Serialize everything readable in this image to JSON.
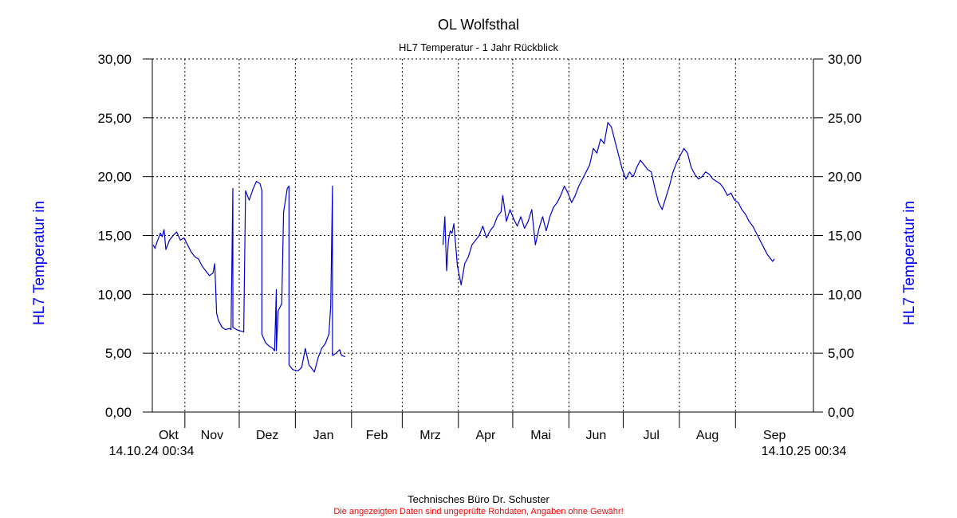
{
  "chart_data": {
    "type": "line",
    "title": "OL Wolfsthal",
    "subtitle": "HL7 Temperatur - 1 Jahr Rückblick",
    "ylabel_left": "HL7 Temperatur in",
    "ylabel_right": "HL7 Temperatur in",
    "ylim": [
      0,
      30
    ],
    "yticks": [
      "0,00",
      "5,00",
      "10,00",
      "15,00",
      "20,00",
      "25,00",
      "30,00"
    ],
    "x_start_label": "14.10.24 00:34",
    "x_end_label": "14.10.25 00:34",
    "months": [
      "Okt",
      "Nov",
      "Dez",
      "Jan",
      "Feb",
      "Mrz",
      "Apr",
      "Mai",
      "Jun",
      "Jul",
      "Aug",
      "Sep"
    ],
    "grid": true,
    "line_color": "#0000cc",
    "series": [
      {
        "segments": [
          [
            [
              "2024-10-14",
              14.2
            ],
            [
              "2024-10-15",
              13.9
            ],
            [
              "2024-10-16",
              14.4
            ],
            [
              "2024-10-17",
              14.8
            ],
            [
              "2024-10-18",
              15.2
            ],
            [
              "2024-10-19",
              14.9
            ],
            [
              "2024-10-20",
              15.5
            ],
            [
              "2024-10-21",
              13.8
            ],
            [
              "2024-10-23",
              14.6
            ],
            [
              "2024-10-25",
              15.0
            ],
            [
              "2024-10-27",
              15.3
            ],
            [
              "2024-10-29",
              14.6
            ],
            [
              "2024-10-31",
              14.8
            ],
            [
              "2024-11-02",
              14.2
            ],
            [
              "2024-11-04",
              13.6
            ],
            [
              "2024-11-06",
              13.2
            ],
            [
              "2024-11-08",
              13.0
            ],
            [
              "2024-11-10",
              12.4
            ],
            [
              "2024-11-12",
              12.0
            ],
            [
              "2024-11-14",
              11.6
            ],
            [
              "2024-11-16",
              11.8
            ],
            [
              "2024-11-17",
              12.6
            ],
            [
              "2024-11-18",
              8.4
            ],
            [
              "2024-11-19",
              7.8
            ],
            [
              "2024-11-21",
              7.2
            ],
            [
              "2024-11-23",
              7.0
            ],
            [
              "2024-11-25",
              7.1
            ],
            [
              "2024-11-26",
              7.0
            ],
            [
              "2024-11-27",
              19.0
            ],
            [
              "2024-11-27",
              7.2
            ],
            [
              "2024-11-29",
              7.0
            ],
            [
              "2024-12-01",
              6.9
            ],
            [
              "2024-12-03",
              6.8
            ],
            [
              "2024-12-04",
              18.8
            ],
            [
              "2024-12-06",
              18.0
            ],
            [
              "2024-12-08",
              18.9
            ],
            [
              "2024-12-10",
              19.6
            ],
            [
              "2024-12-12",
              19.4
            ],
            [
              "2024-12-13",
              18.8
            ],
            [
              "2024-12-13",
              6.6
            ],
            [
              "2024-12-15",
              5.9
            ],
            [
              "2024-12-17",
              5.6
            ],
            [
              "2024-12-19",
              5.4
            ],
            [
              "2024-12-20",
              5.2
            ],
            [
              "2024-12-21",
              10.4
            ],
            [
              "2024-12-21",
              5.2
            ],
            [
              "2024-12-22",
              8.6
            ],
            [
              "2024-12-24",
              9.2
            ],
            [
              "2024-12-25",
              17.0
            ],
            [
              "2024-12-27",
              19.0
            ],
            [
              "2024-12-28",
              19.2
            ],
            [
              "2024-12-28",
              4.0
            ],
            [
              "2024-12-30",
              3.6
            ],
            [
              "2025-01-02",
              3.5
            ],
            [
              "2025-01-04",
              3.8
            ],
            [
              "2025-01-06",
              5.4
            ],
            [
              "2025-01-08",
              4.0
            ],
            [
              "2025-01-10",
              3.6
            ],
            [
              "2025-01-11",
              3.4
            ],
            [
              "2025-01-13",
              4.6
            ],
            [
              "2025-01-15",
              5.4
            ],
            [
              "2025-01-17",
              5.8
            ],
            [
              "2025-01-19",
              6.6
            ],
            [
              "2025-01-20",
              9.0
            ],
            [
              "2025-01-21",
              19.2
            ],
            [
              "2025-01-21",
              4.8
            ],
            [
              "2025-01-23",
              5.0
            ],
            [
              "2025-01-25",
              5.3
            ],
            [
              "2025-01-26",
              4.8
            ],
            [
              "2025-01-28",
              4.7
            ]
          ],
          [
            [
              "2025-03-23",
              14.2
            ],
            [
              "2025-03-24",
              16.6
            ],
            [
              "2025-03-25",
              12.0
            ],
            [
              "2025-03-26",
              14.6
            ],
            [
              "2025-03-27",
              15.4
            ],
            [
              "2025-03-28",
              15.2
            ],
            [
              "2025-03-29",
              16.0
            ],
            [
              "2025-03-31",
              12.4
            ],
            [
              "2025-04-02",
              10.8
            ],
            [
              "2025-04-04",
              12.6
            ],
            [
              "2025-04-06",
              13.2
            ],
            [
              "2025-04-08",
              14.2
            ],
            [
              "2025-04-10",
              14.6
            ],
            [
              "2025-04-12",
              15.0
            ],
            [
              "2025-04-14",
              15.8
            ],
            [
              "2025-04-16",
              14.8
            ],
            [
              "2025-04-18",
              15.4
            ],
            [
              "2025-04-20",
              15.8
            ],
            [
              "2025-04-22",
              16.6
            ],
            [
              "2025-04-24",
              17.0
            ],
            [
              "2025-04-25",
              18.4
            ],
            [
              "2025-04-27",
              16.2
            ],
            [
              "2025-04-29",
              17.2
            ],
            [
              "2025-05-01",
              16.4
            ],
            [
              "2025-05-03",
              15.8
            ],
            [
              "2025-05-05",
              16.6
            ],
            [
              "2025-05-07",
              15.6
            ],
            [
              "2025-05-09",
              16.2
            ],
            [
              "2025-05-11",
              17.2
            ],
            [
              "2025-05-13",
              14.2
            ],
            [
              "2025-05-15",
              15.6
            ],
            [
              "2025-05-17",
              16.6
            ],
            [
              "2025-05-19",
              15.4
            ],
            [
              "2025-05-21",
              16.6
            ],
            [
              "2025-05-23",
              17.4
            ],
            [
              "2025-05-25",
              17.8
            ],
            [
              "2025-05-27",
              18.4
            ],
            [
              "2025-05-29",
              19.2
            ],
            [
              "2025-05-31",
              18.6
            ],
            [
              "2025-06-02",
              17.8
            ],
            [
              "2025-06-04",
              18.4
            ],
            [
              "2025-06-06",
              19.2
            ],
            [
              "2025-06-08",
              19.8
            ],
            [
              "2025-06-10",
              20.4
            ],
            [
              "2025-06-12",
              21.0
            ],
            [
              "2025-06-14",
              22.4
            ],
            [
              "2025-06-16",
              22.0
            ],
            [
              "2025-06-18",
              23.2
            ],
            [
              "2025-06-20",
              22.8
            ],
            [
              "2025-06-22",
              24.6
            ],
            [
              "2025-06-24",
              24.2
            ],
            [
              "2025-06-26",
              23.0
            ],
            [
              "2025-06-28",
              21.8
            ],
            [
              "2025-06-30",
              20.6
            ],
            [
              "2025-07-02",
              19.8
            ],
            [
              "2025-07-04",
              20.4
            ],
            [
              "2025-07-06",
              20.0
            ],
            [
              "2025-07-08",
              20.8
            ],
            [
              "2025-07-10",
              21.4
            ],
            [
              "2025-07-12",
              21.0
            ],
            [
              "2025-07-14",
              20.6
            ],
            [
              "2025-07-16",
              20.4
            ],
            [
              "2025-07-18",
              19.0
            ],
            [
              "2025-07-20",
              17.8
            ],
            [
              "2025-07-22",
              17.2
            ],
            [
              "2025-07-24",
              18.2
            ],
            [
              "2025-07-26",
              19.2
            ],
            [
              "2025-07-28",
              20.4
            ],
            [
              "2025-07-30",
              21.2
            ],
            [
              "2025-08-01",
              21.8
            ],
            [
              "2025-08-03",
              22.4
            ],
            [
              "2025-08-05",
              22.0
            ],
            [
              "2025-08-07",
              20.8
            ],
            [
              "2025-08-09",
              20.2
            ],
            [
              "2025-08-11",
              19.8
            ],
            [
              "2025-08-13",
              20.0
            ],
            [
              "2025-08-15",
              20.4
            ],
            [
              "2025-08-17",
              20.2
            ],
            [
              "2025-08-19",
              19.8
            ],
            [
              "2025-08-21",
              19.6
            ],
            [
              "2025-08-23",
              19.4
            ],
            [
              "2025-08-25",
              19.0
            ],
            [
              "2025-08-27",
              18.4
            ],
            [
              "2025-08-29",
              18.6
            ],
            [
              "2025-08-31",
              18.0
            ],
            [
              "2025-09-02",
              17.8
            ],
            [
              "2025-09-04",
              17.2
            ],
            [
              "2025-09-06",
              16.8
            ],
            [
              "2025-09-08",
              16.2
            ],
            [
              "2025-09-10",
              15.8
            ],
            [
              "2025-09-12",
              15.2
            ],
            [
              "2025-09-14",
              14.6
            ],
            [
              "2025-09-16",
              14.0
            ],
            [
              "2025-09-18",
              13.4
            ],
            [
              "2025-09-20",
              13.0
            ],
            [
              "2025-09-21",
              12.8
            ],
            [
              "2025-09-22",
              13.0
            ]
          ]
        ]
      }
    ]
  },
  "footer": {
    "company": "Technisches Büro Dr. Schuster",
    "disclaimer": "Die angezeigten Daten sind ungeprüfte Rohdaten, Angaben ohne Gewähr!"
  }
}
